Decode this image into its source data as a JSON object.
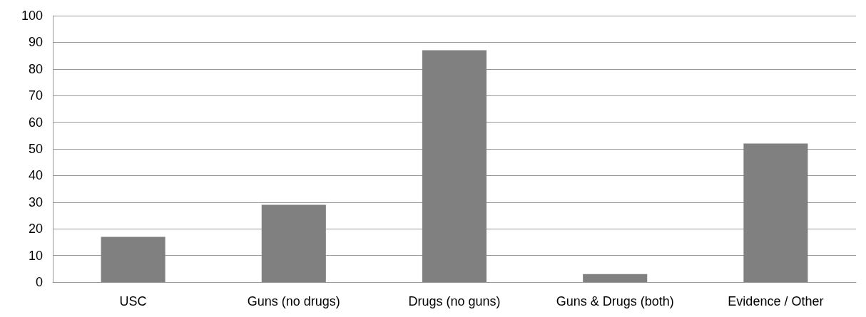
{
  "chart_data": {
    "type": "bar",
    "categories": [
      "USC",
      "Guns (no drugs)",
      "Drugs (no guns)",
      "Guns & Drugs (both)",
      "Evidence / Other"
    ],
    "values": [
      17,
      29,
      87,
      3,
      52
    ],
    "color": "#808080",
    "ylim": [
      0,
      100
    ],
    "yticks": [
      0,
      10,
      20,
      30,
      40,
      50,
      60,
      70,
      80,
      90,
      100
    ],
    "grid": "y"
  }
}
